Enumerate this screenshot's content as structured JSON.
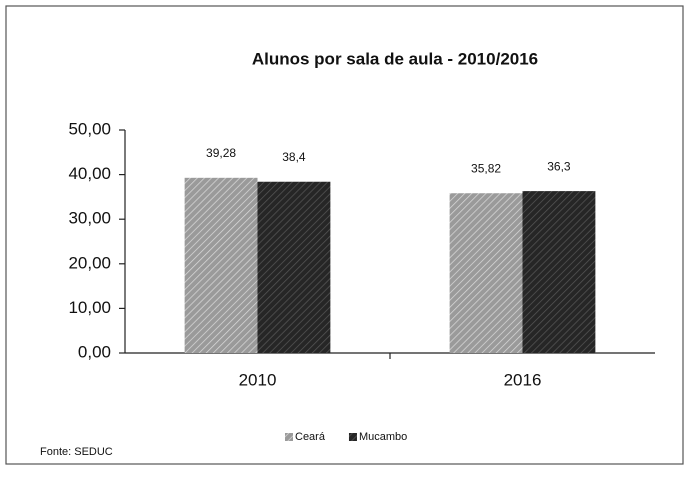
{
  "chart_data": {
    "type": "bar",
    "title": "Alunos por sala de aula - 2010/2016",
    "categories": [
      "2010",
      "2016"
    ],
    "series": [
      {
        "name": "Ceará",
        "color": "#9a9a9a",
        "values": [
          39.28,
          35.82
        ],
        "value_labels": [
          "39,28",
          "35,82"
        ]
      },
      {
        "name": "Mucambo",
        "color": "#262626",
        "values": [
          38.4,
          36.3
        ],
        "value_labels": [
          "38,4",
          "36,3"
        ]
      }
    ],
    "ylim": [
      0,
      50
    ],
    "yticks": [
      {
        "value": 0,
        "label": "0,00"
      },
      {
        "value": 10,
        "label": "10,00"
      },
      {
        "value": 20,
        "label": "20,00"
      },
      {
        "value": 30,
        "label": "30,00"
      },
      {
        "value": 40,
        "label": "40,00"
      },
      {
        "value": 50,
        "label": "50,00"
      }
    ],
    "grid": false,
    "legend": "bottom",
    "source": "Fonte: SEDUC"
  }
}
